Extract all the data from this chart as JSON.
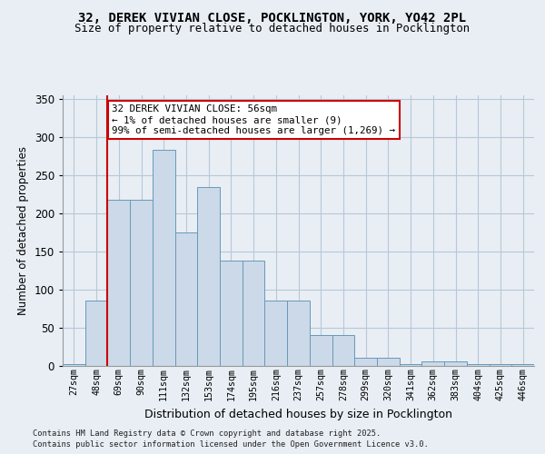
{
  "title_line1": "32, DEREK VIVIAN CLOSE, POCKLINGTON, YORK, YO42 2PL",
  "title_line2": "Size of property relative to detached houses in Pocklington",
  "xlabel": "Distribution of detached houses by size in Pocklington",
  "ylabel": "Number of detached properties",
  "bin_labels": [
    "27sqm",
    "48sqm",
    "69sqm",
    "90sqm",
    "111sqm",
    "132sqm",
    "153sqm",
    "174sqm",
    "195sqm",
    "216sqm",
    "237sqm",
    "257sqm",
    "278sqm",
    "299sqm",
    "320sqm",
    "341sqm",
    "362sqm",
    "383sqm",
    "404sqm",
    "425sqm",
    "446sqm"
  ],
  "bar_values": [
    2,
    85,
    218,
    218,
    283,
    175,
    235,
    138,
    138,
    85,
    85,
    40,
    40,
    10,
    10,
    2,
    5,
    5,
    2,
    2,
    2
  ],
  "bar_color": "#ccd9e8",
  "bar_edge_color": "#6699bb",
  "vline_x": 1.5,
  "vline_color": "#cc0000",
  "annotation_text": "32 DEREK VIVIAN CLOSE: 56sqm\n← 1% of detached houses are smaller (9)\n99% of semi-detached houses are larger (1,269) →",
  "annotation_box_color": "#ffffff",
  "annotation_box_edge": "#cc0000",
  "ylim": [
    0,
    355
  ],
  "yticks": [
    0,
    50,
    100,
    150,
    200,
    250,
    300,
    350
  ],
  "background_color": "#e8eef4",
  "footer_line1": "Contains HM Land Registry data © Crown copyright and database right 2025.",
  "footer_line2": "Contains public sector information licensed under the Open Government Licence v3.0."
}
